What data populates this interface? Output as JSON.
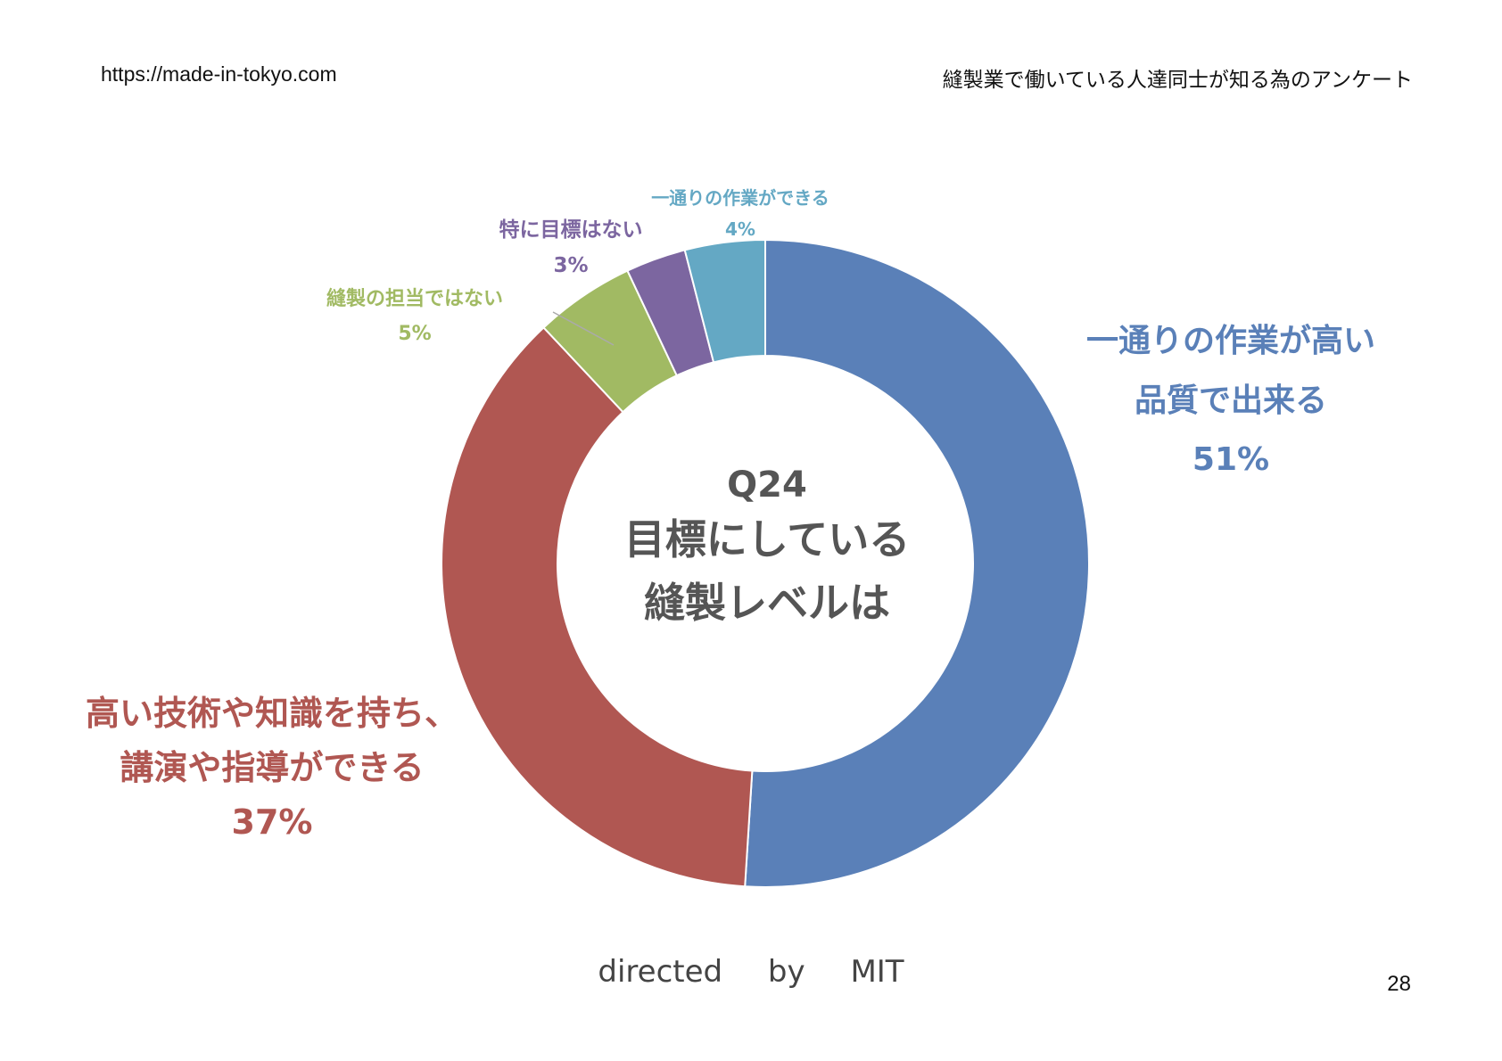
{
  "header": {
    "url": "https://made-in-tokyo.com",
    "title": "縫製業で働いている人達同士が知る為のアンケート"
  },
  "chart_data": {
    "type": "pie",
    "donut": true,
    "title": "Q24",
    "center_lines": [
      "Q24",
      "目標にしている",
      "縫製レベルは"
    ],
    "slices": [
      {
        "label": "一通りの作業が高い品質で出来る",
        "label_lines": [
          "一通りの作業が高い",
          "品質で出来る"
        ],
        "value": 51,
        "value_label": "51%",
        "color": "#5a80b8"
      },
      {
        "label": "高い技術や知識を持ち、講演や指導ができる",
        "label_lines": [
          "高い技術や知識を持ち、",
          "講演や指導ができる"
        ],
        "value": 37,
        "value_label": "37%",
        "color": "#b05752"
      },
      {
        "label": "縫製の担当ではない",
        "label_lines": [
          "縫製の担当ではない"
        ],
        "value": 5,
        "value_label": "5%",
        "color": "#a1ba63"
      },
      {
        "label": "特に目標はない",
        "label_lines": [
          "特に目標はない"
        ],
        "value": 3,
        "value_label": "3%",
        "color": "#7c66a0"
      },
      {
        "label": "一通りの作業ができる",
        "label_lines": [
          "一通りの作業ができる"
        ],
        "value": 4,
        "value_label": "4%",
        "color": "#64a8c4"
      }
    ]
  },
  "footer": {
    "words": [
      "directed",
      "by",
      "MIT"
    ],
    "page_number": "28"
  }
}
